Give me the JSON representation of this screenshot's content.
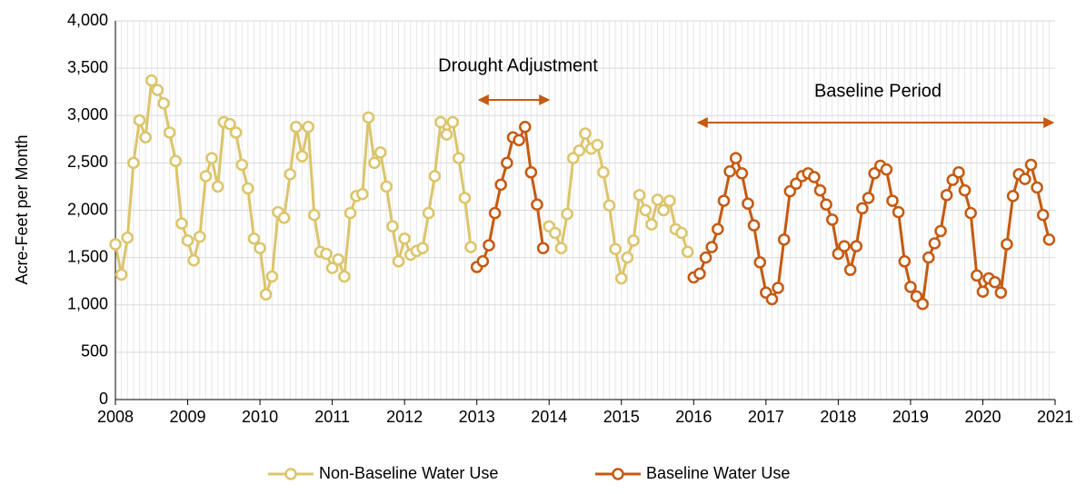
{
  "chart_data": {
    "type": "line",
    "y_label": "Acre-Feet per Month",
    "annotations": [
      "Drought Adjustment",
      "Baseline Period"
    ],
    "x": [
      2008,
      2008.083,
      2008.167,
      2008.25,
      2008.333,
      2008.417,
      2008.5,
      2008.583,
      2008.667,
      2008.75,
      2008.833,
      2008.917,
      2009,
      2009.083,
      2009.167,
      2009.25,
      2009.333,
      2009.417,
      2009.5,
      2009.583,
      2009.667,
      2009.75,
      2009.833,
      2009.917,
      2010,
      2010.083,
      2010.167,
      2010.25,
      2010.333,
      2010.417,
      2010.5,
      2010.583,
      2010.667,
      2010.75,
      2010.833,
      2010.917,
      2011,
      2011.083,
      2011.167,
      2011.25,
      2011.333,
      2011.417,
      2011.5,
      2011.583,
      2011.667,
      2011.75,
      2011.833,
      2011.917,
      2012,
      2012.083,
      2012.167,
      2012.25,
      2012.333,
      2012.417,
      2012.5,
      2012.583,
      2012.667,
      2012.75,
      2012.833,
      2012.917,
      2013,
      2013.083,
      2013.167,
      2013.25,
      2013.333,
      2013.417,
      2013.5,
      2013.583,
      2013.667,
      2013.75,
      2013.833,
      2013.917,
      2014,
      2014.083,
      2014.167,
      2014.25,
      2014.333,
      2014.417,
      2014.5,
      2014.583,
      2014.667,
      2014.75,
      2014.833,
      2014.917,
      2015,
      2015.083,
      2015.167,
      2015.25,
      2015.333,
      2015.417,
      2015.5,
      2015.583,
      2015.667,
      2015.75,
      2015.833,
      2015.917,
      2016,
      2016.083,
      2016.167,
      2016.25,
      2016.333,
      2016.417,
      2016.5,
      2016.583,
      2016.667,
      2016.75,
      2016.833,
      2016.917,
      2017,
      2017.083,
      2017.167,
      2017.25,
      2017.333,
      2017.417,
      2017.5,
      2017.583,
      2017.667,
      2017.75,
      2017.833,
      2017.917,
      2018,
      2018.083,
      2018.167,
      2018.25,
      2018.333,
      2018.417,
      2018.5,
      2018.583,
      2018.667,
      2018.75,
      2018.833,
      2018.917,
      2019,
      2019.083,
      2019.167,
      2019.25,
      2019.333,
      2019.417,
      2019.5,
      2019.583,
      2019.667,
      2019.75,
      2019.833,
      2019.917,
      2020,
      2020.083,
      2020.167,
      2020.25,
      2020.333,
      2020.417,
      2020.5,
      2020.583,
      2020.667,
      2020.75,
      2020.833,
      2020.917
    ],
    "series": [
      {
        "name": "Non-Baseline Water Use",
        "color": "#dcc56a",
        "values": [
          1640,
          1320,
          1710,
          2500,
          2950,
          2770,
          3370,
          3270,
          3130,
          2820,
          2520,
          1860,
          1680,
          1470,
          1720,
          2360,
          2550,
          2250,
          2930,
          2910,
          2820,
          2480,
          2230,
          1700,
          1600,
          1110,
          1300,
          1980,
          1920,
          2380,
          2880,
          2570,
          2880,
          1950,
          1560,
          1540,
          1390,
          1480,
          1300,
          1970,
          2150,
          2170,
          2980,
          2500,
          2610,
          2250,
          1830,
          1460,
          1700,
          1530,
          1570,
          1600,
          1970,
          2360,
          2930,
          2800,
          2930,
          2550,
          2130,
          1610,
          null,
          null,
          null,
          null,
          null,
          null,
          null,
          null,
          null,
          null,
          null,
          null,
          1830,
          1760,
          1600,
          1960,
          2550,
          2630,
          2810,
          2650,
          2690,
          2400,
          2050,
          1590,
          1280,
          1500,
          1680,
          2160,
          2000,
          1850,
          2110,
          2000,
          2100,
          1800,
          1760,
          1560,
          null,
          null,
          null,
          null,
          null,
          null,
          null,
          null,
          null,
          null,
          null,
          null,
          null,
          null,
          null,
          null,
          null,
          null,
          null,
          null,
          null,
          null,
          null,
          null,
          null,
          null,
          null,
          null,
          null,
          null,
          null,
          null,
          null,
          null,
          null,
          null,
          null,
          null,
          null,
          null,
          null,
          null,
          null,
          null,
          null,
          null,
          null,
          null,
          null,
          null,
          null,
          null,
          null,
          null,
          null,
          null,
          null,
          null,
          null,
          null
        ]
      },
      {
        "name": "Baseline Water Use",
        "color": "#c55a11",
        "values": [
          null,
          null,
          null,
          null,
          null,
          null,
          null,
          null,
          null,
          null,
          null,
          null,
          null,
          null,
          null,
          null,
          null,
          null,
          null,
          null,
          null,
          null,
          null,
          null,
          null,
          null,
          null,
          null,
          null,
          null,
          null,
          null,
          null,
          null,
          null,
          null,
          null,
          null,
          null,
          null,
          null,
          null,
          null,
          null,
          null,
          null,
          null,
          null,
          null,
          null,
          null,
          null,
          null,
          null,
          null,
          null,
          null,
          null,
          null,
          null,
          1400,
          1460,
          1630,
          1970,
          2270,
          2500,
          2770,
          2740,
          2880,
          2400,
          2060,
          1600,
          null,
          null,
          null,
          null,
          null,
          null,
          null,
          null,
          null,
          null,
          null,
          null,
          null,
          null,
          null,
          null,
          null,
          null,
          null,
          null,
          null,
          null,
          null,
          null,
          1290,
          1330,
          1500,
          1610,
          1800,
          2100,
          2410,
          2550,
          2390,
          2070,
          1840,
          1450,
          1130,
          1060,
          1180,
          1690,
          2200,
          2280,
          2360,
          2390,
          2350,
          2210,
          2060,
          1900,
          1540,
          1620,
          1370,
          1620,
          2020,
          2130,
          2390,
          2470,
          2430,
          2100,
          1980,
          1460,
          1190,
          1090,
          1010,
          1500,
          1650,
          1780,
          2160,
          2320,
          2400,
          2210,
          1970,
          1310,
          1140,
          1280,
          1240,
          1130,
          1640,
          2150,
          2380,
          2330,
          2480,
          2240,
          1950,
          1690
        ]
      }
    ],
    "xlim": [
      2008,
      2021
    ],
    "xticks": [
      2008,
      2009,
      2010,
      2011,
      2012,
      2013,
      2014,
      2015,
      2016,
      2017,
      2018,
      2019,
      2020,
      2021
    ],
    "ylim": [
      0,
      4000
    ],
    "yticks": [
      0,
      500,
      {
        "value": 1000,
        "label": "1,000"
      },
      {
        "value": 1500,
        "label": "1,500"
      },
      {
        "value": 2000,
        "label": "2,000"
      },
      {
        "value": 2500,
        "label": "2,500"
      },
      {
        "value": 3000,
        "label": "3,000"
      },
      {
        "value": 3500,
        "label": "3,500"
      },
      {
        "value": 4000,
        "label": "4,000"
      }
    ],
    "grid": true,
    "legend": "bottom"
  }
}
